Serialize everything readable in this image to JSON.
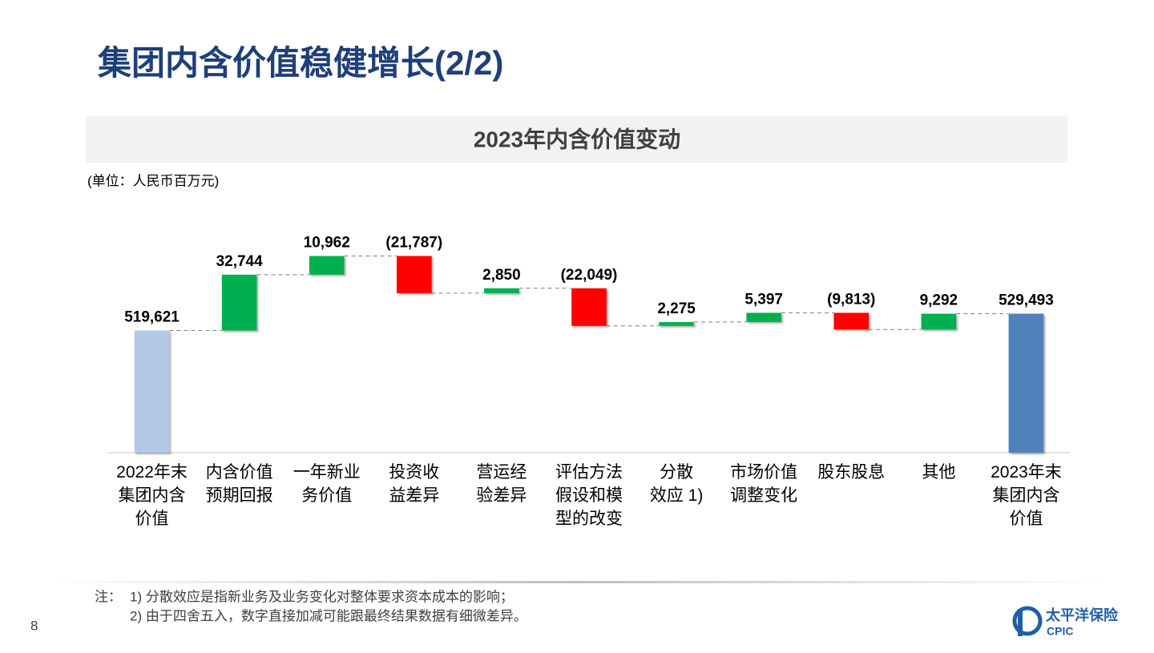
{
  "slide": {
    "title": "集团内含价值稳健增长(2/2)",
    "unit": "(单位：人民币百万元)",
    "notes": {
      "label": "注：",
      "lines": [
        "1) 分散效应是指新业务及业务变化对整体要求资本成本的影响；",
        "2) 由于四舍五入，数字直接加减可能跟最终结果数据有细微差异。"
      ]
    },
    "page_number": "8",
    "logo": {
      "name": "太平洋保险",
      "abbr": "CPIC"
    }
  },
  "chart_data": {
    "type": "waterfall",
    "title": "2023年内含价值变动",
    "categories": [
      "2022年末\n集团内含\n价值",
      "内含价值\n预期回报",
      "一年新业\n务价值",
      "投资收\n益差异",
      "营运经\n验差异",
      "评估方法\n假设和模\n型的改变",
      "分散\n效应 1)",
      "市场价值\n调整变化",
      "股东股息",
      "其他",
      "2023年末\n集团内含\n价值"
    ],
    "values": [
      519621,
      32744,
      10962,
      -21787,
      2850,
      -22049,
      2275,
      5397,
      -9813,
      9292,
      529493
    ],
    "value_labels": [
      "519,621",
      "32,744",
      "10,962",
      "(21,787)",
      "2,850",
      "(22,049)",
      "2,275",
      "5,397",
      "(9,813)",
      "9,292",
      "529,493"
    ],
    "measure": [
      "absolute",
      "relative",
      "relative",
      "relative",
      "relative",
      "relative",
      "relative",
      "relative",
      "relative",
      "relative",
      "total"
    ],
    "colors": {
      "start": "#b4c7e7",
      "increase": "#00b050",
      "decrease": "#ff0000",
      "total": "#4f81bd"
    },
    "ylim": [
      448000,
      580000
    ]
  }
}
